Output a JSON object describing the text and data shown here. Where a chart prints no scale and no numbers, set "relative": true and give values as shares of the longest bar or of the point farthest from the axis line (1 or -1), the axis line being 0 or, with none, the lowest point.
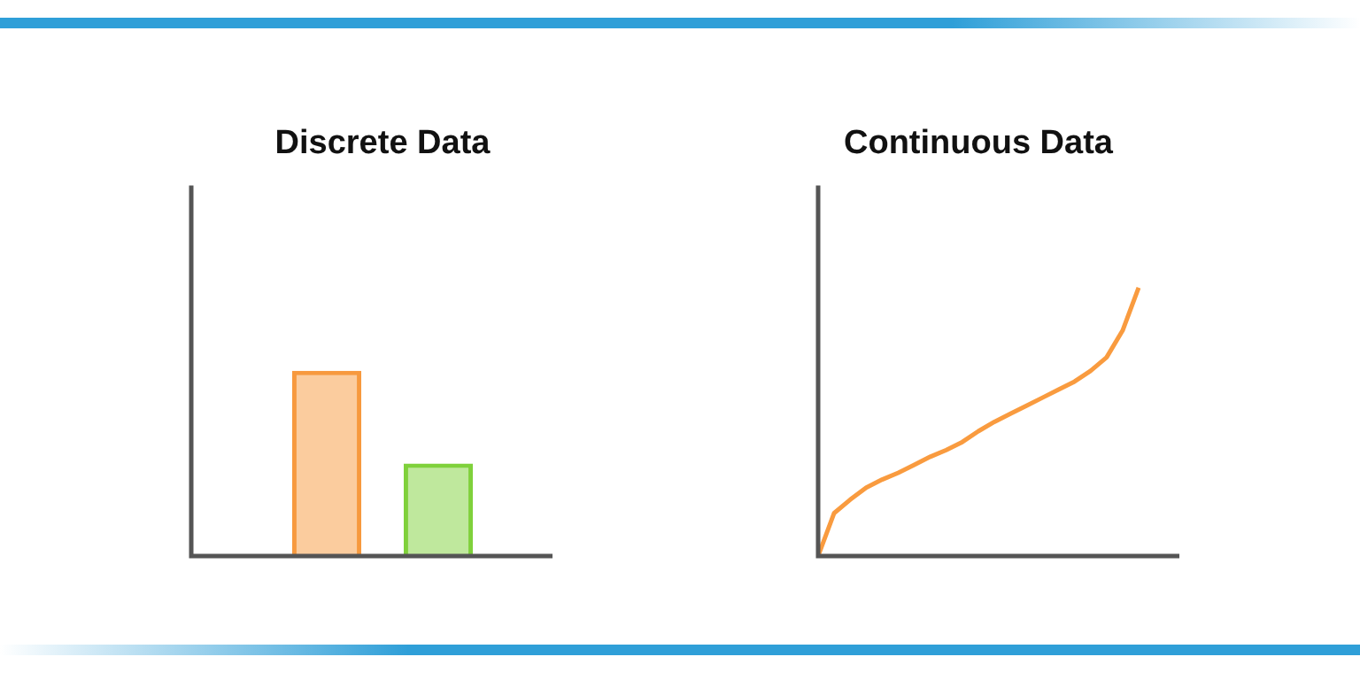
{
  "chart_data": [
    {
      "type": "bar",
      "title": "Discrete Data",
      "categories": [
        null,
        null
      ],
      "values": [
        1,
        0.5
      ],
      "colors": [
        "#f7993e",
        "#7fd13b"
      ],
      "relative": true
    },
    {
      "type": "line",
      "title": "Continuous Data",
      "categories": [
        null,
        null,
        null,
        null,
        null,
        null,
        null,
        null,
        null,
        null,
        null,
        null,
        null,
        null,
        null,
        null,
        null,
        null,
        null,
        null,
        null
      ],
      "values": [
        0,
        0.16,
        0.21,
        0.255,
        0.285,
        0.31,
        0.34,
        0.37,
        0.395,
        0.425,
        0.465,
        0.5,
        0.53,
        0.56,
        0.59,
        0.62,
        0.65,
        0.69,
        0.74,
        0.84,
        1
      ],
      "color": "#f99b3f",
      "marker": "none",
      "relative": true
    }
  ]
}
